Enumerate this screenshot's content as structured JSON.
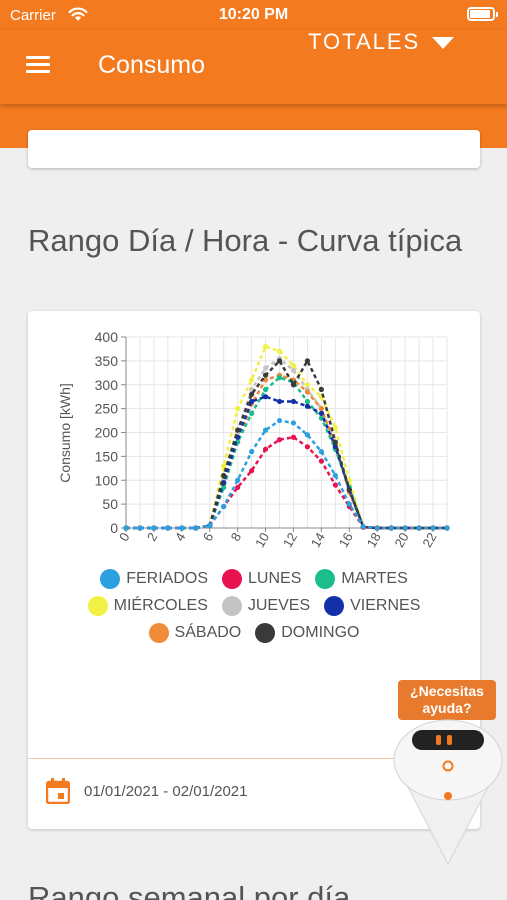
{
  "status_bar": {
    "carrier": "Carrier",
    "time": "10:20 PM"
  },
  "app_bar": {
    "title": "Consumo",
    "selector_value": "TOTALES"
  },
  "section": {
    "title": "Rango Día / Hora - Curva típica"
  },
  "card": {
    "date_range": "01/01/2021 - 02/01/2021"
  },
  "next_section": {
    "title": "Rango semanal por día"
  },
  "help": {
    "line1": "¿Necesitas",
    "line2": "ayuda?"
  },
  "colors": {
    "accent": "#f47a20",
    "text": "#555555"
  },
  "chart_data": {
    "type": "line",
    "x": [
      0,
      1,
      2,
      3,
      4,
      5,
      6,
      7,
      8,
      9,
      10,
      11,
      12,
      13,
      14,
      15,
      16,
      17,
      18,
      19,
      20,
      21,
      22,
      23
    ],
    "x_ticks": [
      "0",
      "2",
      "4",
      "6",
      "8",
      "10",
      "12",
      "14",
      "16",
      "18",
      "20",
      "22"
    ],
    "y_ticks": [
      "0",
      "50",
      "100",
      "150",
      "200",
      "250",
      "300",
      "350",
      "400"
    ],
    "ylabel": "Consumo [kWh]",
    "ylim": [
      0,
      400
    ],
    "grid": true,
    "legend_position": "bottom",
    "series": [
      {
        "name": "FERIADOS",
        "color": "#2b9fe0",
        "values": [
          0,
          0,
          0,
          0,
          0,
          0,
          5,
          45,
          100,
          160,
          205,
          225,
          220,
          195,
          160,
          110,
          50,
          3,
          0,
          0,
          0,
          0,
          0,
          0
        ]
      },
      {
        "name": "LUNES",
        "color": "#e8124f",
        "values": [
          0,
          0,
          0,
          0,
          0,
          0,
          5,
          45,
          85,
          120,
          165,
          185,
          190,
          170,
          140,
          90,
          45,
          2,
          0,
          0,
          0,
          0,
          0,
          0
        ]
      },
      {
        "name": "MARTES",
        "color": "#1cbd8c",
        "values": [
          0,
          0,
          0,
          0,
          0,
          0,
          5,
          85,
          180,
          240,
          290,
          315,
          305,
          265,
          230,
          165,
          85,
          2,
          0,
          0,
          0,
          0,
          0,
          0
        ]
      },
      {
        "name": "MIÉRCOLES",
        "color": "#f2f043",
        "values": [
          0,
          0,
          0,
          0,
          0,
          0,
          5,
          130,
          250,
          310,
          380,
          370,
          340,
          300,
          275,
          210,
          100,
          2,
          0,
          0,
          0,
          0,
          0,
          0
        ]
      },
      {
        "name": "JUEVES",
        "color": "#c4c4c4",
        "values": [
          0,
          0,
          0,
          0,
          0,
          0,
          5,
          100,
          200,
          290,
          335,
          355,
          330,
          290,
          250,
          170,
          80,
          2,
          0,
          0,
          0,
          0,
          0,
          0
        ]
      },
      {
        "name": "VIERNES",
        "color": "#1231a8",
        "values": [
          0,
          0,
          0,
          0,
          0,
          0,
          5,
          95,
          190,
          265,
          275,
          265,
          265,
          255,
          240,
          170,
          80,
          2,
          0,
          0,
          0,
          0,
          0,
          0
        ]
      },
      {
        "name": "SÁBADO",
        "color": "#f08b3a",
        "values": [
          0,
          0,
          0,
          0,
          0,
          0,
          5,
          90,
          180,
          260,
          310,
          320,
          310,
          285,
          250,
          175,
          75,
          2,
          0,
          0,
          0,
          0,
          0,
          0
        ]
      },
      {
        "name": "DOMINGO",
        "color": "#3a3a3a",
        "values": [
          0,
          0,
          0,
          0,
          0,
          0,
          5,
          110,
          205,
          280,
          320,
          350,
          300,
          350,
          290,
          180,
          80,
          2,
          0,
          0,
          0,
          0,
          0,
          0
        ]
      }
    ]
  }
}
